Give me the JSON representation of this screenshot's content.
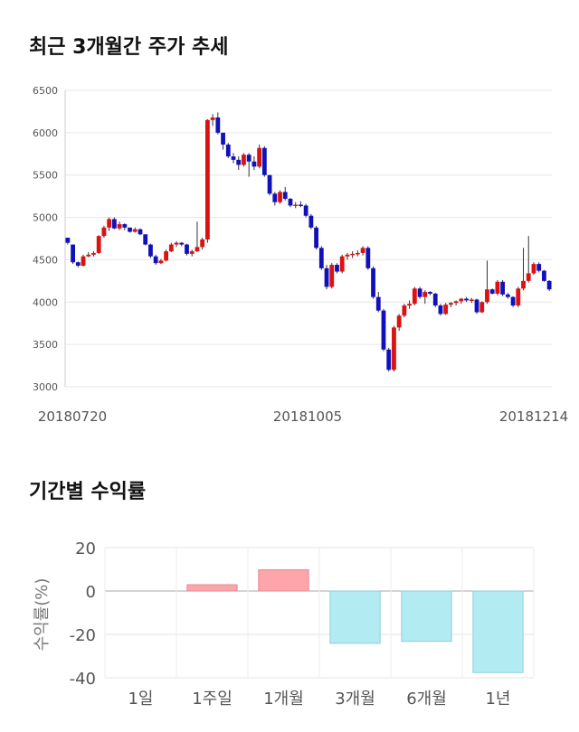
{
  "titles": {
    "price_trend": "최근 3개월간 주가 추세",
    "returns": "기간별 수익률"
  },
  "chart_data": [
    {
      "type": "candlestick",
      "ylim": [
        3000,
        6500
      ],
      "yticks": [
        "6500",
        "6000",
        "5500",
        "5000",
        "4500",
        "4000",
        "3500",
        "3000"
      ],
      "x_labels": [
        "20180720",
        "20181005",
        "20181214"
      ],
      "grid": true,
      "colors": {
        "up": "#dd1111",
        "down": "#1111bb",
        "wick": "#333333"
      },
      "candles": [
        [
          4760,
          4760,
          4680,
          4700
        ],
        [
          4680,
          4680,
          4450,
          4470
        ],
        [
          4470,
          4480,
          4410,
          4430
        ],
        [
          4430,
          4560,
          4420,
          4540
        ],
        [
          4540,
          4590,
          4530,
          4560
        ],
        [
          4560,
          4600,
          4540,
          4580
        ],
        [
          4580,
          4790,
          4570,
          4780
        ],
        [
          4780,
          4900,
          4760,
          4880
        ],
        [
          4880,
          5000,
          4840,
          4980
        ],
        [
          4980,
          5000,
          4860,
          4870
        ],
        [
          4870,
          4950,
          4850,
          4920
        ],
        [
          4920,
          4930,
          4850,
          4880
        ],
        [
          4880,
          4880,
          4820,
          4830
        ],
        [
          4830,
          4880,
          4820,
          4860
        ],
        [
          4860,
          4870,
          4790,
          4800
        ],
        [
          4800,
          4800,
          4670,
          4680
        ],
        [
          4680,
          4690,
          4520,
          4540
        ],
        [
          4540,
          4560,
          4440,
          4460
        ],
        [
          4460,
          4510,
          4450,
          4490
        ],
        [
          4490,
          4620,
          4480,
          4600
        ],
        [
          4600,
          4700,
          4590,
          4680
        ],
        [
          4680,
          4720,
          4650,
          4700
        ],
        [
          4700,
          4710,
          4660,
          4680
        ],
        [
          4680,
          4690,
          4550,
          4570
        ],
        [
          4570,
          4620,
          4540,
          4600
        ],
        [
          4600,
          4950,
          4590,
          4650
        ],
        [
          4650,
          4760,
          4620,
          4740
        ],
        [
          4740,
          6160,
          4700,
          6150
        ],
        [
          6150,
          6220,
          6080,
          6180
        ],
        [
          6180,
          6240,
          5980,
          6000
        ],
        [
          6000,
          6000,
          5800,
          5860
        ],
        [
          5860,
          5880,
          5700,
          5720
        ],
        [
          5720,
          5760,
          5640,
          5680
        ],
        [
          5680,
          5720,
          5560,
          5620
        ],
        [
          5620,
          5760,
          5600,
          5740
        ],
        [
          5740,
          5760,
          5480,
          5660
        ],
        [
          5660,
          5720,
          5560,
          5600
        ],
        [
          5600,
          5860,
          5580,
          5820
        ],
        [
          5820,
          5840,
          5480,
          5500
        ],
        [
          5500,
          5500,
          5260,
          5280
        ],
        [
          5280,
          5300,
          5140,
          5180
        ],
        [
          5180,
          5320,
          5160,
          5300
        ],
        [
          5300,
          5360,
          5200,
          5220
        ],
        [
          5220,
          5230,
          5120,
          5140
        ],
        [
          5140,
          5180,
          5110,
          5150
        ],
        [
          5150,
          5190,
          5120,
          5140
        ],
        [
          5140,
          5160,
          5000,
          5020
        ],
        [
          5020,
          5040,
          4860,
          4880
        ],
        [
          4880,
          4900,
          4620,
          4640
        ],
        [
          4640,
          4660,
          4380,
          4400
        ],
        [
          4400,
          4440,
          4150,
          4180
        ],
        [
          4180,
          4460,
          4160,
          4440
        ],
        [
          4440,
          4460,
          4340,
          4360
        ],
        [
          4360,
          4560,
          4340,
          4540
        ],
        [
          4540,
          4580,
          4500,
          4560
        ],
        [
          4560,
          4600,
          4520,
          4570
        ],
        [
          4570,
          4610,
          4540,
          4580
        ],
        [
          4580,
          4660,
          4550,
          4640
        ],
        [
          4640,
          4660,
          4380,
          4400
        ],
        [
          4400,
          4420,
          4040,
          4060
        ],
        [
          4060,
          4120,
          3880,
          3900
        ],
        [
          3900,
          3920,
          3420,
          3440
        ],
        [
          3440,
          3460,
          3180,
          3200
        ],
        [
          3200,
          3720,
          3180,
          3700
        ],
        [
          3700,
          3860,
          3660,
          3840
        ],
        [
          3840,
          3980,
          3820,
          3960
        ],
        [
          3960,
          4020,
          3920,
          3980
        ],
        [
          3980,
          4180,
          3960,
          4160
        ],
        [
          4160,
          4180,
          4040,
          4060
        ],
        [
          4060,
          4140,
          3980,
          4120
        ],
        [
          4120,
          4130,
          4080,
          4100
        ],
        [
          4100,
          4110,
          3940,
          3960
        ],
        [
          3960,
          3980,
          3840,
          3860
        ],
        [
          3860,
          3990,
          3850,
          3970
        ],
        [
          3970,
          4000,
          3940,
          3990
        ],
        [
          3990,
          4020,
          3960,
          4010
        ],
        [
          4010,
          4050,
          3980,
          4040
        ],
        [
          4040,
          4060,
          4000,
          4020
        ],
        [
          4020,
          4050,
          3990,
          4030
        ],
        [
          4030,
          4040,
          3860,
          3880
        ],
        [
          3880,
          4010,
          3870,
          4000
        ],
        [
          4000,
          4490,
          3980,
          4150
        ],
        [
          4150,
          4160,
          4090,
          4100
        ],
        [
          4100,
          4260,
          4080,
          4240
        ],
        [
          4240,
          4260,
          4070,
          4090
        ],
        [
          4090,
          4110,
          4040,
          4060
        ],
        [
          4060,
          4070,
          3940,
          3960
        ],
        [
          3960,
          4180,
          3940,
          4160
        ],
        [
          4160,
          4640,
          4140,
          4250
        ],
        [
          4250,
          4780,
          4230,
          4340
        ],
        [
          4340,
          4470,
          4320,
          4450
        ],
        [
          4450,
          4470,
          4350,
          4370
        ],
        [
          4370,
          4380,
          4240,
          4250
        ],
        [
          4250,
          4260,
          4130,
          4150
        ]
      ]
    },
    {
      "type": "bar",
      "categories": [
        "1일",
        "1주일",
        "1개월",
        "3개월",
        "6개월",
        "1년"
      ],
      "values": [
        0,
        2.9,
        9.8,
        -24.1,
        -23.2,
        -37.6
      ],
      "ylim": [
        -40,
        20
      ],
      "yticks": [
        "20",
        "0",
        "-20",
        "-40"
      ],
      "ylabel": "수익률(%)",
      "grid": true,
      "colors": {
        "positive_fill": "#fca5ab",
        "positive_stroke": "#e68990",
        "negative_fill": "#b3ebf3",
        "negative_stroke": "#8fcfda"
      }
    }
  ]
}
